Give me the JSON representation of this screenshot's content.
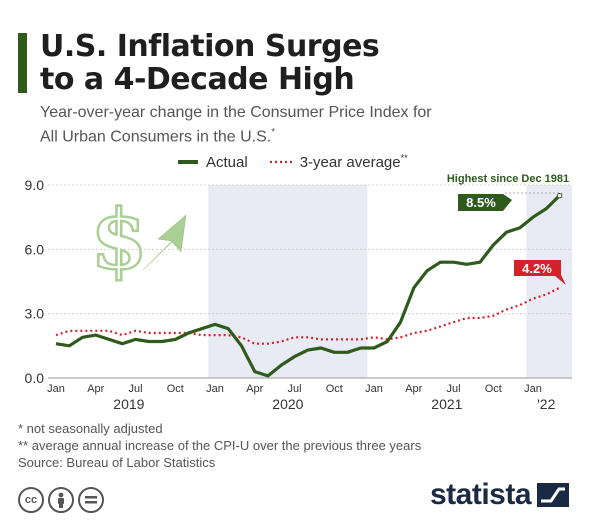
{
  "header": {
    "title_line1": "U.S. Inflation Surges",
    "title_line2": "to a 4-Decade High",
    "subtitle_line1": "Year-over-year change in the Consumer Price Index for",
    "subtitle_line2": "All Urban Consumers in the U.S.",
    "subtitle_marker": "*"
  },
  "legend": {
    "actual_label": "Actual",
    "average_label": "3-year average",
    "average_marker": "**"
  },
  "annotations": {
    "highest": "Highest since Dec 1981",
    "actual_callout": "8.5%",
    "average_callout": "4.2%"
  },
  "notes": {
    "line1": "*   not seasonally adjusted",
    "line2": "** average annual increase of the CPI-U over the previous three years",
    "line3": "Source: Bureau of Labor Statistics"
  },
  "footer": {
    "brand": "statista",
    "icons": [
      "creative-commons-icon",
      "attribution-icon",
      "no-derivatives-icon"
    ]
  },
  "colors": {
    "actual": "#2e5a1c",
    "average": "#d3222a",
    "band": "#e8ebf3",
    "accent": "#2e5a1c",
    "dollar": "#a9cf95"
  },
  "chart_data": {
    "type": "line",
    "ylim": [
      0,
      9
    ],
    "yticks": [
      "0.0",
      "3.0",
      "6.0",
      "9.0"
    ],
    "x": [
      "2019-01",
      "2019-02",
      "2019-03",
      "2019-04",
      "2019-05",
      "2019-06",
      "2019-07",
      "2019-08",
      "2019-09",
      "2019-10",
      "2019-11",
      "2019-12",
      "2020-01",
      "2020-02",
      "2020-03",
      "2020-04",
      "2020-05",
      "2020-06",
      "2020-07",
      "2020-08",
      "2020-09",
      "2020-10",
      "2020-11",
      "2020-12",
      "2021-01",
      "2021-02",
      "2021-03",
      "2021-04",
      "2021-05",
      "2021-06",
      "2021-07",
      "2021-08",
      "2021-09",
      "2021-10",
      "2021-11",
      "2021-12",
      "2022-01",
      "2022-02",
      "2022-03"
    ],
    "month_ticks": [
      "Jan",
      "Apr",
      "Jul",
      "Oct",
      "Jan",
      "Apr",
      "Jul",
      "Oct",
      "Jan",
      "Apr",
      "Jul",
      "Oct",
      "Jan"
    ],
    "year_labels": [
      "2019",
      "2020",
      "2021",
      "'22"
    ],
    "series": [
      {
        "name": "Actual",
        "values": [
          1.6,
          1.5,
          1.9,
          2.0,
          1.8,
          1.6,
          1.8,
          1.7,
          1.7,
          1.8,
          2.1,
          2.3,
          2.5,
          2.3,
          1.5,
          0.3,
          0.1,
          0.6,
          1.0,
          1.3,
          1.4,
          1.2,
          1.2,
          1.4,
          1.4,
          1.7,
          2.6,
          4.2,
          5.0,
          5.4,
          5.4,
          5.3,
          5.4,
          6.2,
          6.8,
          7.0,
          7.5,
          7.9,
          8.5
        ]
      },
      {
        "name": "3-year average",
        "values": [
          2.0,
          2.2,
          2.2,
          2.2,
          2.2,
          2.0,
          2.2,
          2.1,
          2.1,
          2.1,
          2.1,
          2.0,
          2.0,
          2.0,
          1.9,
          1.6,
          1.6,
          1.7,
          1.9,
          1.9,
          1.8,
          1.8,
          1.8,
          1.8,
          1.9,
          1.8,
          1.9,
          2.1,
          2.2,
          2.4,
          2.6,
          2.8,
          2.8,
          2.9,
          3.2,
          3.4,
          3.7,
          3.9,
          4.2
        ]
      }
    ]
  }
}
